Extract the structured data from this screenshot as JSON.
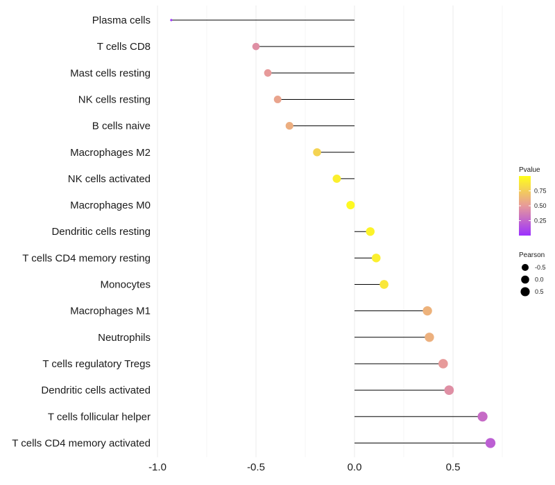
{
  "chart_data": {
    "type": "lollipop",
    "title": "",
    "xlabel": "",
    "ylabel": "",
    "xlim": [
      -1.0,
      0.75
    ],
    "x_ticks": [
      -1.0,
      -0.5,
      0.0,
      0.5
    ],
    "x_tick_labels": [
      "-1.0",
      "-0.5",
      "0.0",
      "0.5"
    ],
    "grid": true,
    "baseline": 0.0,
    "points": [
      {
        "label": "Plasma cells",
        "pearson": -0.93,
        "pvalue": 0.02
      },
      {
        "label": "T cells CD8",
        "pearson": -0.5,
        "pvalue": 0.45
      },
      {
        "label": "Mast cells resting",
        "pearson": -0.44,
        "pvalue": 0.5
      },
      {
        "label": "NK cells resting",
        "pearson": -0.39,
        "pvalue": 0.55
      },
      {
        "label": "B cells naive",
        "pearson": -0.33,
        "pvalue": 0.6
      },
      {
        "label": "Macrophages M2",
        "pearson": -0.19,
        "pvalue": 0.78
      },
      {
        "label": "NK cells activated",
        "pearson": -0.09,
        "pvalue": 0.92
      },
      {
        "label": "Macrophages M0",
        "pearson": -0.02,
        "pvalue": 0.97
      },
      {
        "label": "Dendritic cells resting",
        "pearson": 0.08,
        "pvalue": 0.94
      },
      {
        "label": "T cells CD4 memory resting",
        "pearson": 0.11,
        "pvalue": 0.92
      },
      {
        "label": "Monocytes",
        "pearson": 0.15,
        "pvalue": 0.88
      },
      {
        "label": "Macrophages M1",
        "pearson": 0.37,
        "pvalue": 0.62
      },
      {
        "label": "Neutrophils",
        "pearson": 0.38,
        "pvalue": 0.61
      },
      {
        "label": "T cells regulatory  Tregs ",
        "pearson": 0.45,
        "pvalue": 0.5
      },
      {
        "label": "Dendritic cells activated",
        "pearson": 0.48,
        "pvalue": 0.45
      },
      {
        "label": "T cells follicular helper",
        "pearson": 0.65,
        "pvalue": 0.28
      },
      {
        "label": "T cells CD4 memory activated",
        "pearson": 0.69,
        "pvalue": 0.22
      }
    ],
    "legend_color": {
      "title": "Pvalue",
      "range": [
        0.0,
        1.0
      ],
      "ticks": [
        0.25,
        0.5,
        0.75
      ],
      "tick_labels": [
        "0.25",
        "0.50",
        "0.75"
      ],
      "low_color": "#9b30ff",
      "mid_color": "#e79a9a",
      "high_color": "#ffff1a",
      "position": "right"
    },
    "legend_size": {
      "title": "Pearson",
      "values": [
        -0.5,
        0.0,
        0.5
      ],
      "labels": [
        "-0.5",
        "0.0",
        "0.5"
      ],
      "position": "right"
    }
  }
}
